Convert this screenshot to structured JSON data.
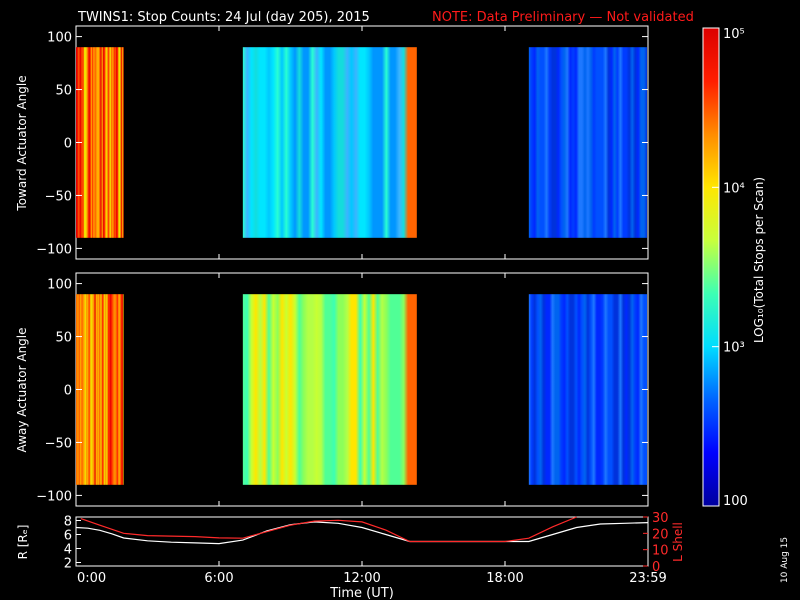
{
  "header": {
    "title": "TWINS1: Stop Counts: 24 Jul (day 205), 2015",
    "note": "NOTE: Data Preliminary — Not validated"
  },
  "footer": {
    "date_stamp": "10 Aug 15"
  },
  "chart_data": [
    {
      "type": "heatmap",
      "ylabel": "Toward Actuator Angle",
      "ylim": [
        -110,
        110
      ],
      "y_ticks": [
        "100",
        "50",
        "0",
        "−50",
        "−100"
      ],
      "y_tick_values": [
        100,
        50,
        0,
        -50,
        -100
      ],
      "xlim_hours": [
        0,
        24
      ],
      "angle_range": [
        -90,
        90
      ],
      "grid": false,
      "blocks": [
        {
          "start_hour": 0.0,
          "end_hour": 2.0,
          "dominant": "orange-red"
        },
        {
          "start_hour": 7.0,
          "end_hour": 14.3,
          "dominant": "cyan-blue"
        },
        {
          "start_hour": 19.0,
          "end_hour": 24.0,
          "dominant": "blue"
        }
      ]
    },
    {
      "type": "heatmap",
      "ylabel": "Away Actuator Angle",
      "ylim": [
        -110,
        110
      ],
      "y_ticks": [
        "100",
        "50",
        "0",
        "−50",
        "−100"
      ],
      "y_tick_values": [
        100,
        50,
        0,
        -50,
        -100
      ],
      "xlim_hours": [
        0,
        24
      ],
      "angle_range": [
        -90,
        90
      ],
      "grid": false,
      "blocks": [
        {
          "start_hour": 0.0,
          "end_hour": 2.0,
          "dominant": "orange-red"
        },
        {
          "start_hour": 7.0,
          "end_hour": 14.3,
          "dominant": "green-yellow"
        },
        {
          "start_hour": 19.0,
          "end_hour": 24.0,
          "dominant": "blue"
        }
      ]
    },
    {
      "type": "line",
      "xlabel": "Time (UT)",
      "x_ticks": [
        "0:00",
        "6:00",
        "12:00",
        "18:00",
        "23:59"
      ],
      "x_tick_hours": [
        0,
        6,
        12,
        18,
        24
      ],
      "left_axis": {
        "label": "R [Rₑ]",
        "ylim": [
          1.5,
          8.5
        ],
        "ticks": [
          "8",
          "6",
          "4",
          "2"
        ],
        "tick_values": [
          8,
          6,
          4,
          2
        ]
      },
      "right_axis": {
        "label": "L Shell",
        "ylim": [
          0,
          30
        ],
        "ticks": [
          "30",
          "20",
          "10",
          "0"
        ],
        "tick_values": [
          30,
          20,
          10,
          0
        ],
        "color": "#ff2a2a"
      },
      "series": [
        {
          "axis": "left",
          "color": "#ffffff",
          "x": [
            0,
            0.5,
            1.0,
            1.5,
            2.0,
            3,
            4,
            5,
            6,
            7,
            8,
            9,
            10,
            11,
            12,
            13,
            14,
            15,
            16,
            17,
            18,
            19,
            20,
            21,
            22,
            23,
            24
          ],
          "y": [
            7.0,
            6.9,
            6.6,
            6.1,
            5.5,
            5.1,
            4.9,
            4.8,
            4.7,
            5.2,
            6.5,
            7.4,
            7.8,
            7.6,
            7.0,
            6.0,
            5.0,
            5.0,
            5.0,
            5.0,
            5.0,
            5.0,
            6.0,
            7.0,
            7.5,
            7.6,
            7.7
          ]
        },
        {
          "axis": "right",
          "color": "#ff2a2a",
          "x": [
            0.2,
            1.0,
            2.0,
            3,
            4,
            5,
            6,
            7,
            8,
            9,
            10,
            11,
            12,
            13,
            14,
            15,
            16,
            17,
            18,
            19,
            20,
            21
          ],
          "y": [
            29,
            25,
            20,
            18.6,
            18.3,
            18,
            17.2,
            17,
            21,
            25,
            27.5,
            28,
            27,
            22,
            15,
            15,
            15,
            15,
            15,
            17,
            24,
            30
          ]
        }
      ]
    }
  ],
  "colorbar": {
    "label": "LOG₁₀(Total Stops per Scan)",
    "tick_labels": [
      "10⁵",
      "10⁴",
      "10³",
      "100"
    ],
    "tick_values": [
      100000,
      10000,
      1000,
      100
    ],
    "range": [
      100,
      100000
    ],
    "scale": "log",
    "colors": [
      "#00009e",
      "#0000ff",
      "#0064ff",
      "#00dcff",
      "#3cffb4",
      "#c8ff3c",
      "#ffe600",
      "#ff8c00",
      "#ff1e00",
      "#dc0000"
    ]
  }
}
